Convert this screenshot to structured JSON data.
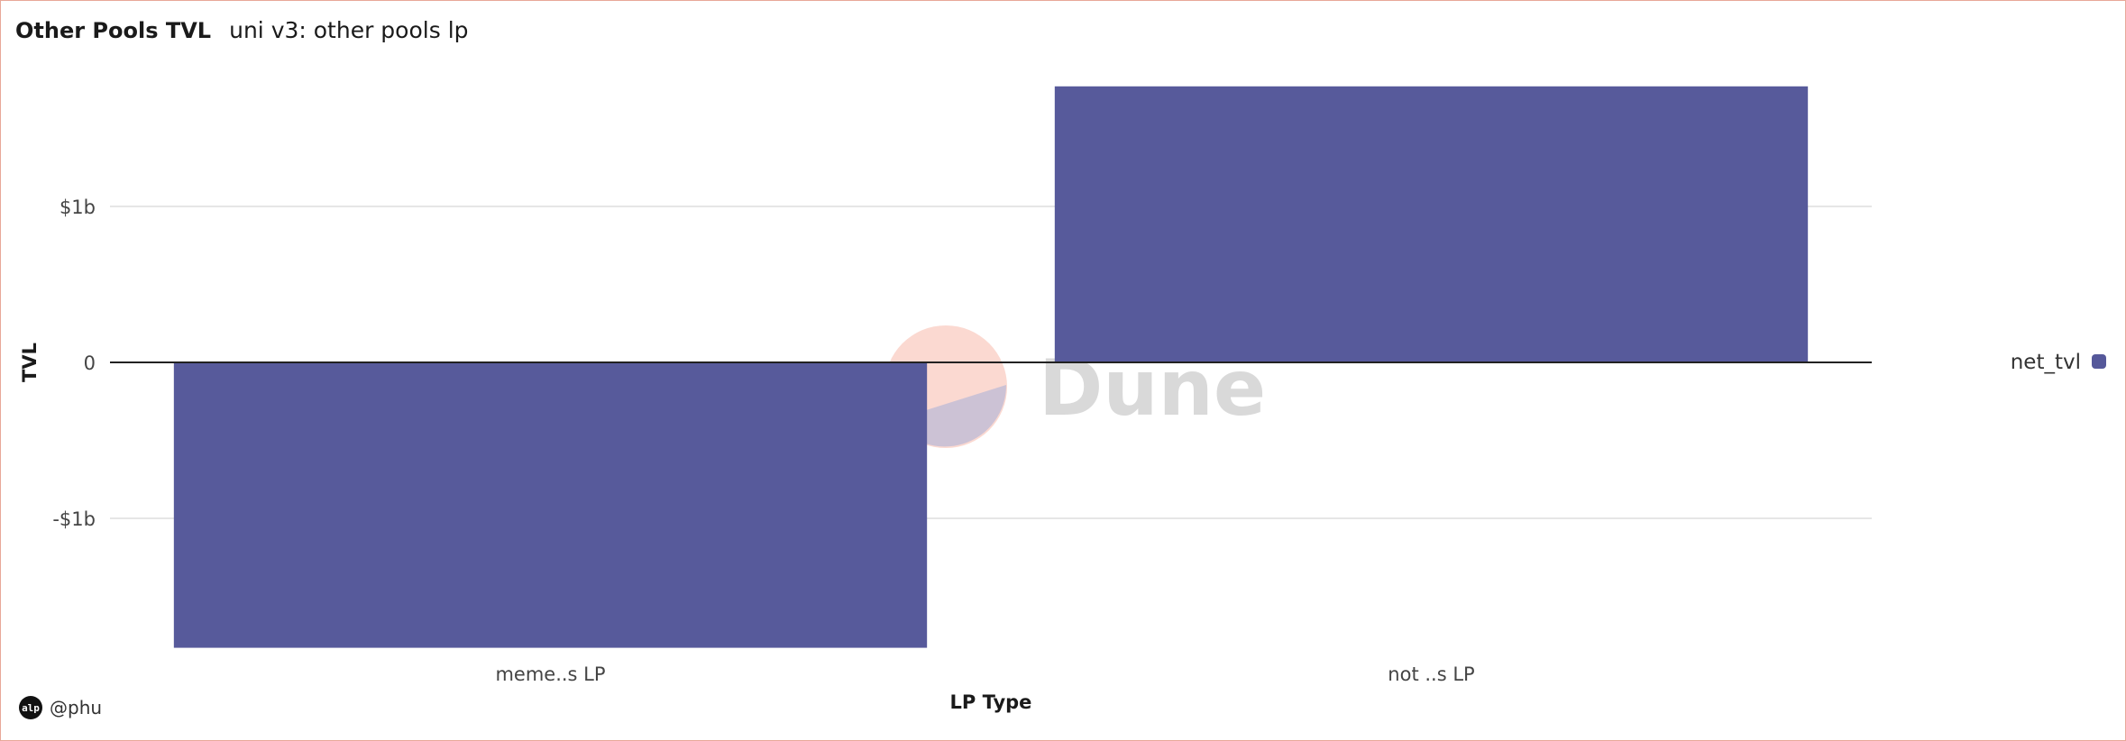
{
  "header": {
    "title": "Other Pools TVL",
    "subtitle": "uni v3: other pools lp"
  },
  "footer": {
    "avatar_text": "alp",
    "author": "@phu"
  },
  "watermark": {
    "text": "Dune"
  },
  "colors": {
    "bar": "#55589a",
    "gridline": "#e6e6e6",
    "zero_line": "#222222",
    "watermark_pink": "#f9c9bd",
    "watermark_purple": "#bcbad6"
  },
  "chart_data": {
    "type": "bar",
    "title": "",
    "categories": [
      "meme..s LP",
      "not ..s LP"
    ],
    "series": [
      {
        "name": "net_tvl",
        "values": [
          -1830000000,
          1770000000
        ]
      }
    ],
    "xlabel": "LP Type",
    "ylabel": "TVL",
    "y_ticks": [
      {
        "value": -1000000000,
        "label": "-$1b"
      },
      {
        "value": 0,
        "label": "0"
      },
      {
        "value": 1000000000,
        "label": "$1b"
      }
    ],
    "ylim": [
      -2000000000,
      2000000000
    ],
    "grid": true,
    "legend_position": "right"
  }
}
